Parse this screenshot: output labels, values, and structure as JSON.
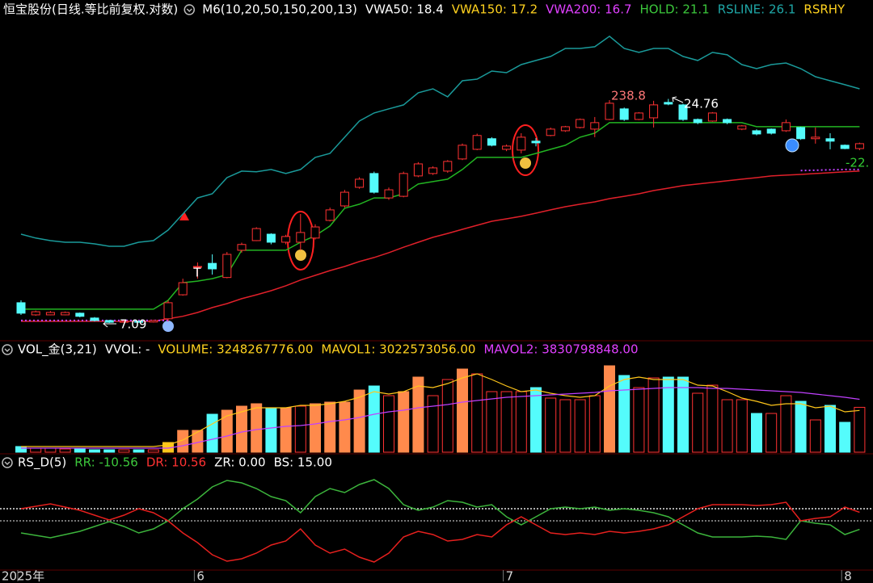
{
  "chart_data": [
    {
      "type": "candlestick",
      "header": [
        {
          "text": "恒宝股份(日线.等比前复权.对数)",
          "color": "#ffffff"
        },
        {
          "text": "M6(10,20,50,150,200,13)",
          "color": "#ffffff"
        },
        {
          "text": "VWA50: 18.4",
          "color": "#ffffff"
        },
        {
          "text": "VWA150: 17.2",
          "color": "#ffd21f"
        },
        {
          "text": "VWA200: 16.7",
          "color": "#e040ff"
        },
        {
          "text": "HOLD: 21.1",
          "color": "#3cc83c"
        },
        {
          "text": "RSLINE: 26.1",
          "color": "#1fa7a7"
        },
        {
          "text": "RSRHY",
          "color": "#ffd21f"
        }
      ],
      "log": true,
      "ylim": [
        6.48,
        43
      ],
      "up_color": "#ff3232",
      "down_color": "#54fcfc",
      "open": [
        7.94,
        7.42,
        7.42,
        7.42,
        7.49,
        7.29,
        7.19,
        7.12,
        7.16,
        7.13,
        7.26,
        8.3,
        9.72,
        9.89,
        9.14,
        10.64,
        11.23,
        11.64,
        11.13,
        11.13,
        11.39,
        12.57,
        13.63,
        15.12,
        16.33,
        14.25,
        14.38,
        16.11,
        16.33,
        16.55,
        17.71,
        18.69,
        19.83,
        18.69,
        18.61,
        19.56,
        20.19,
        20.73,
        21.11,
        20.92,
        22.08,
        23.42,
        22.08,
        22.28,
        24.28,
        23.95,
        22.08,
        21.88,
        22.08,
        20.92,
        20.73,
        20.92,
        20.73,
        21.11,
        19.83,
        19.83,
        19.12,
        18.77
      ],
      "high": [
        8.05,
        7.6,
        7.58,
        7.56,
        7.52,
        7.33,
        7.22,
        7.2,
        7.19,
        7.22,
        8.05,
        9.08,
        9.94,
        10.4,
        10.54,
        11.1,
        12.1,
        11.7,
        11.6,
        13.03,
        12.3,
        13.5,
        14.9,
        16.0,
        16.5,
        15.1,
        16.5,
        17.4,
        17.0,
        17.6,
        19.3,
        20.4,
        20.0,
        19.2,
        20.45,
        19.9,
        21.1,
        21.3,
        22.2,
        22.38,
        24.6,
        23.6,
        23.0,
        24.5,
        24.76,
        24.1,
        22.2,
        23.0,
        22.2,
        21.4,
        20.9,
        21.0,
        22.08,
        21.2,
        21.11,
        20.45,
        19.2,
        19.4
      ],
      "low": [
        7.42,
        7.38,
        7.4,
        7.4,
        7.32,
        7.16,
        7.09,
        7.1,
        7.1,
        7.11,
        7.15,
        8.26,
        9.08,
        9.29,
        9.1,
        10.5,
        11.2,
        11.0,
        11.0,
        10.64,
        11.3,
        12.5,
        13.5,
        15.0,
        14.6,
        14.1,
        14.3,
        16.0,
        16.2,
        16.4,
        17.6,
        18.6,
        19.0,
        18.5,
        18.27,
        19.0,
        20.1,
        20.6,
        21.0,
        20.0,
        22.0,
        21.9,
        22.0,
        21.11,
        23.9,
        21.9,
        21.5,
        21.8,
        21.5,
        20.8,
        20.2,
        20.3,
        20.6,
        19.7,
        19.29,
        18.69,
        18.7,
        18.6
      ],
      "close": [
        7.49,
        7.55,
        7.52,
        7.52,
        7.36,
        7.19,
        7.12,
        7.16,
        7.12,
        7.19,
        7.94,
        8.88,
        9.72,
        9.59,
        10.4,
        10.99,
        12.01,
        11.13,
        11.49,
        11.75,
        12.12,
        13.33,
        14.71,
        15.82,
        14.71,
        14.91,
        16.33,
        17.23,
        16.85,
        17.47,
        19.12,
        20.19,
        19.12,
        19.03,
        20.0,
        19.38,
        20.92,
        21.2,
        22.08,
        21.69,
        24.17,
        22.08,
        22.89,
        23.95,
        24.06,
        22.08,
        21.69,
        22.89,
        21.69,
        21.3,
        20.36,
        20.45,
        21.69,
        19.83,
        20.0,
        19.56,
        18.77,
        19.29
      ],
      "series": [
        {
          "color": "#1a9a9a",
          "values": [
            11.64,
            11.39,
            11.23,
            11.13,
            11.13,
            11.03,
            10.88,
            10.88,
            11.13,
            11.23,
            11.91,
            13.03,
            14.25,
            14.58,
            15.96,
            16.55,
            16.48,
            16.7,
            16.33,
            16.7,
            17.87,
            18.27,
            20.0,
            21.88,
            22.89,
            23.42,
            23.95,
            25.62,
            26.19,
            25.05,
            27.4,
            27.65,
            28.93,
            28.67,
            29.99,
            30.68,
            31.38,
            32.82,
            32.82,
            33.12,
            35.12,
            32.82,
            32.09,
            32.82,
            32.82,
            31.38,
            30.68,
            32.09,
            31.67,
            29.99,
            29.32,
            29.99,
            30.26,
            29.32,
            28.02,
            27.4,
            26.8,
            26.19
          ]
        },
        {
          "color": "#22b422",
          "values": [
            7.66,
            7.66,
            7.66,
            7.66,
            7.66,
            7.66,
            7.66,
            7.66,
            7.66,
            7.66,
            8.05,
            8.88,
            8.96,
            9.08,
            9.29,
            10.64,
            10.64,
            10.64,
            10.64,
            11.13,
            11.54,
            12.18,
            13.45,
            13.76,
            14.25,
            14.25,
            14.58,
            15.4,
            15.61,
            15.82,
            16.7,
            17.87,
            17.87,
            17.87,
            17.87,
            18.27,
            18.69,
            19.12,
            20.0,
            20.45,
            21.69,
            21.69,
            21.69,
            21.69,
            21.69,
            21.69,
            21.69,
            21.69,
            21.69,
            21.69,
            21.2,
            21.2,
            21.2,
            21.2,
            21.2,
            21.2,
            21.2,
            21.2
          ]
        },
        {
          "color": "#e0202a",
          "values": [
            7.16,
            7.16,
            7.16,
            7.16,
            7.16,
            7.16,
            7.16,
            7.16,
            7.16,
            7.16,
            7.26,
            7.36,
            7.52,
            7.73,
            7.9,
            8.12,
            8.3,
            8.49,
            8.73,
            9.01,
            9.25,
            9.5,
            9.72,
            9.99,
            10.22,
            10.5,
            10.82,
            11.13,
            11.44,
            11.69,
            11.96,
            12.23,
            12.51,
            12.68,
            12.86,
            13.09,
            13.33,
            13.57,
            13.76,
            13.94,
            14.19,
            14.38,
            14.58,
            14.85,
            15.05,
            15.26,
            15.4,
            15.54,
            15.68,
            15.82,
            15.96,
            16.11,
            16.18,
            16.25,
            16.33,
            16.4,
            16.48,
            16.55
          ]
        },
        {
          "color": "#c040ff",
          "dotted": true,
          "values": [
            7.19,
            7.19,
            7.19,
            7.19,
            7.19,
            7.19,
            7.19,
            7.19,
            7.19,
            7.19,
            7.19,
            null,
            null,
            null,
            null,
            null,
            null,
            null,
            null,
            null,
            null,
            null,
            null,
            null,
            null,
            null,
            null,
            null,
            null,
            null,
            null,
            null,
            null,
            null,
            null,
            null,
            null,
            null,
            null,
            null,
            null,
            null,
            null,
            null,
            null,
            null,
            null,
            null,
            null,
            null,
            null,
            null,
            null,
            16.6,
            16.63,
            16.67,
            16.7,
            16.7
          ]
        }
      ],
      "annotations": [
        {
          "text": "238.8",
          "color": "#ff7878"
        },
        {
          "text": "24.76",
          "color": "#ffffff"
        },
        {
          "text": "7.09",
          "color": "#ffffff"
        },
        {
          "text": "T",
          "color": "#ffffff"
        },
        {
          "text": "-22.",
          "color": "#33cc33"
        }
      ]
    },
    {
      "type": "bar",
      "header": [
        {
          "text": "VOL_金(3,21)",
          "color": "#ffffff"
        },
        {
          "text": "VVOL: -",
          "color": "#ffffff"
        },
        {
          "text": "VOLUME: 3248267776.00",
          "color": "#ffd21f"
        },
        {
          "text": "MAVOL1: 3022573056.00",
          "color": "#ffd21f"
        },
        {
          "text": "MAVOL2: 3830798848.00",
          "color": "#e040ff"
        }
      ],
      "ylim": [
        0,
        7600000000
      ],
      "hollow_color": "#ff3232",
      "values": [
        409000000,
        292000000,
        292000000,
        234000000,
        292000000,
        175000000,
        175000000,
        175000000,
        175000000,
        175000000,
        702000000,
        1578000000,
        1578000000,
        2748000000,
        3040000000,
        3332000000,
        3508000000,
        3215000000,
        3215000000,
        3332000000,
        3508000000,
        3625000000,
        3625000000,
        4501000000,
        4794000000,
        4092000000,
        4385000000,
        5437000000,
        4092000000,
        5261000000,
        6021000000,
        5671000000,
        4385000000,
        4385000000,
        4385000000,
        4677000000,
        3917000000,
        3800000000,
        3800000000,
        4092000000,
        6255000000,
        5554000000,
        4677000000,
        5378000000,
        5437000000,
        5437000000,
        4268000000,
        4852000000,
        3800000000,
        3800000000,
        2806000000,
        2806000000,
        4092000000,
        3683000000,
        2338000000,
        3391000000,
        2163000000,
        3248267776
      ],
      "colors": [
        "#54fcfc",
        "#ff3232",
        "#ff3232",
        "#ff3232",
        "#54fcfc",
        "#54fcfc",
        "#54fcfc",
        "#ff3232",
        "#54fcfc",
        "#ff3232",
        "#ffc61a",
        "#ff8a4c",
        "#ff8a4c",
        "#54fcfc",
        "#ff8a4c",
        "#ff8a4c",
        "#ff8a4c",
        "#54fcfc",
        "#ff8a4c",
        "#ff3232",
        "#ff8a4c",
        "#ff8a4c",
        "#ff8a4c",
        "#ff8a4c",
        "#54fcfc",
        "#ff3232",
        "#ff8a4c",
        "#ff8a4c",
        "#ff3232",
        "#ff3232",
        "#ff8a4c",
        "#ff3232",
        "#ff3232",
        "#ff3232",
        "#ff3232",
        "#54fcfc",
        "#ff3232",
        "#ff3232",
        "#ff3232",
        "#ff3232",
        "#ff8a4c",
        "#54fcfc",
        "#ff3232",
        "#ff3232",
        "#54fcfc",
        "#54fcfc",
        "#ff3232",
        "#ff3232",
        "#ff3232",
        "#ff3232",
        "#54fcfc",
        "#ff3232",
        "#ff3232",
        "#54fcfc",
        "#ff3232",
        "#54fcfc",
        "#54fcfc",
        "#ff3232"
      ],
      "series": [
        {
          "color": "#ffc61a",
          "values": [
            409000000,
            409000000,
            409000000,
            409000000,
            409000000,
            409000000,
            409000000,
            409000000,
            409000000,
            409000000,
            526000000,
            877000000,
            1461000000,
            2046000000,
            2631000000,
            2923000000,
            3215000000,
            3215000000,
            3215000000,
            3391000000,
            3391000000,
            3508000000,
            3683000000,
            3975000000,
            4385000000,
            4209000000,
            4385000000,
            4794000000,
            4677000000,
            4969000000,
            5378000000,
            5671000000,
            5261000000,
            4794000000,
            4385000000,
            4501000000,
            4268000000,
            4092000000,
            3975000000,
            4092000000,
            4794000000,
            5261000000,
            5437000000,
            5261000000,
            5261000000,
            5261000000,
            4852000000,
            4794000000,
            4385000000,
            3917000000,
            3683000000,
            3391000000,
            3508000000,
            3508000000,
            3215000000,
            3332000000,
            2923000000,
            3022573056
          ]
        },
        {
          "color": "#c040ff",
          "values": [
            292000000,
            292000000,
            292000000,
            292000000,
            292000000,
            292000000,
            292000000,
            292000000,
            292000000,
            292000000,
            292000000,
            468000000,
            702000000,
            935000000,
            1169000000,
            1461000000,
            1637000000,
            1754000000,
            1871000000,
            1929000000,
            2046000000,
            2221000000,
            2338000000,
            2514000000,
            2748000000,
            2923000000,
            3040000000,
            3215000000,
            3332000000,
            3449000000,
            3625000000,
            3741000000,
            3858000000,
            3975000000,
            4034000000,
            4092000000,
            4151000000,
            4209000000,
            4268000000,
            4326000000,
            4443000000,
            4501000000,
            4560000000,
            4618000000,
            4677000000,
            4677000000,
            4677000000,
            4618000000,
            4618000000,
            4560000000,
            4501000000,
            4443000000,
            4385000000,
            4326000000,
            4209000000,
            4092000000,
            3975000000,
            3830798848
          ]
        }
      ]
    },
    {
      "type": "line",
      "header": [
        {
          "text": "RS_D(5)",
          "color": "#ffffff"
        },
        {
          "text": "RR: -10.56",
          "color": "#3cc83c"
        },
        {
          "text": "DR: 10.56",
          "color": "#ff3232"
        },
        {
          "text": "ZR: 0.00",
          "color": "#ffffff"
        },
        {
          "text": "BS: 15.00",
          "color": "#ffffff"
        }
      ],
      "ylim": [
        -65,
        65
      ],
      "reference_lines": [
        {
          "value": 0,
          "color": "#9a9a9a"
        },
        {
          "value": 15,
          "color": "#e6e6e6"
        }
      ],
      "categories": [
        "2025年",
        null,
        null,
        null,
        null,
        null,
        null,
        null,
        null,
        null,
        null,
        null,
        "6",
        null,
        null,
        null,
        null,
        null,
        null,
        null,
        null,
        null,
        null,
        null,
        null,
        null,
        null,
        null,
        null,
        null,
        null,
        null,
        null,
        "7",
        null,
        null,
        null,
        null,
        null,
        null,
        null,
        null,
        null,
        null,
        null,
        null,
        null,
        null,
        null,
        null,
        null,
        null,
        null,
        null,
        null,
        null,
        "8",
        null
      ],
      "series": [
        {
          "color": "#3cb43c",
          "values": [
            -15,
            -18,
            -21,
            -17,
            -13,
            -7,
            -1,
            -7,
            -15,
            -10,
            0,
            15,
            27,
            42,
            50,
            47,
            40,
            30,
            25,
            10,
            30,
            40,
            35,
            45,
            51,
            40,
            20,
            13,
            17,
            25,
            23,
            17,
            20,
            5,
            -5,
            5,
            15,
            17,
            15,
            17,
            13,
            15,
            13,
            10,
            5,
            -5,
            -15,
            -20,
            -20,
            -20,
            -19,
            -20,
            -23,
            0,
            -3,
            -5,
            -17,
            -10.56
          ]
        },
        {
          "color": "#e6201e",
          "values": [
            15,
            18,
            21,
            17,
            13,
            7,
            1,
            7,
            15,
            10,
            0,
            -15,
            -27,
            -42,
            -50,
            -47,
            -40,
            -30,
            -25,
            -10,
            -30,
            -40,
            -35,
            -45,
            -51,
            -40,
            -20,
            -13,
            -17,
            -25,
            -23,
            -17,
            -20,
            -5,
            5,
            -5,
            -15,
            -17,
            -15,
            -17,
            -13,
            -15,
            -13,
            -10,
            -5,
            5,
            15,
            20,
            20,
            20,
            19,
            20,
            23,
            0,
            3,
            5,
            17,
            10.56
          ]
        }
      ]
    }
  ]
}
